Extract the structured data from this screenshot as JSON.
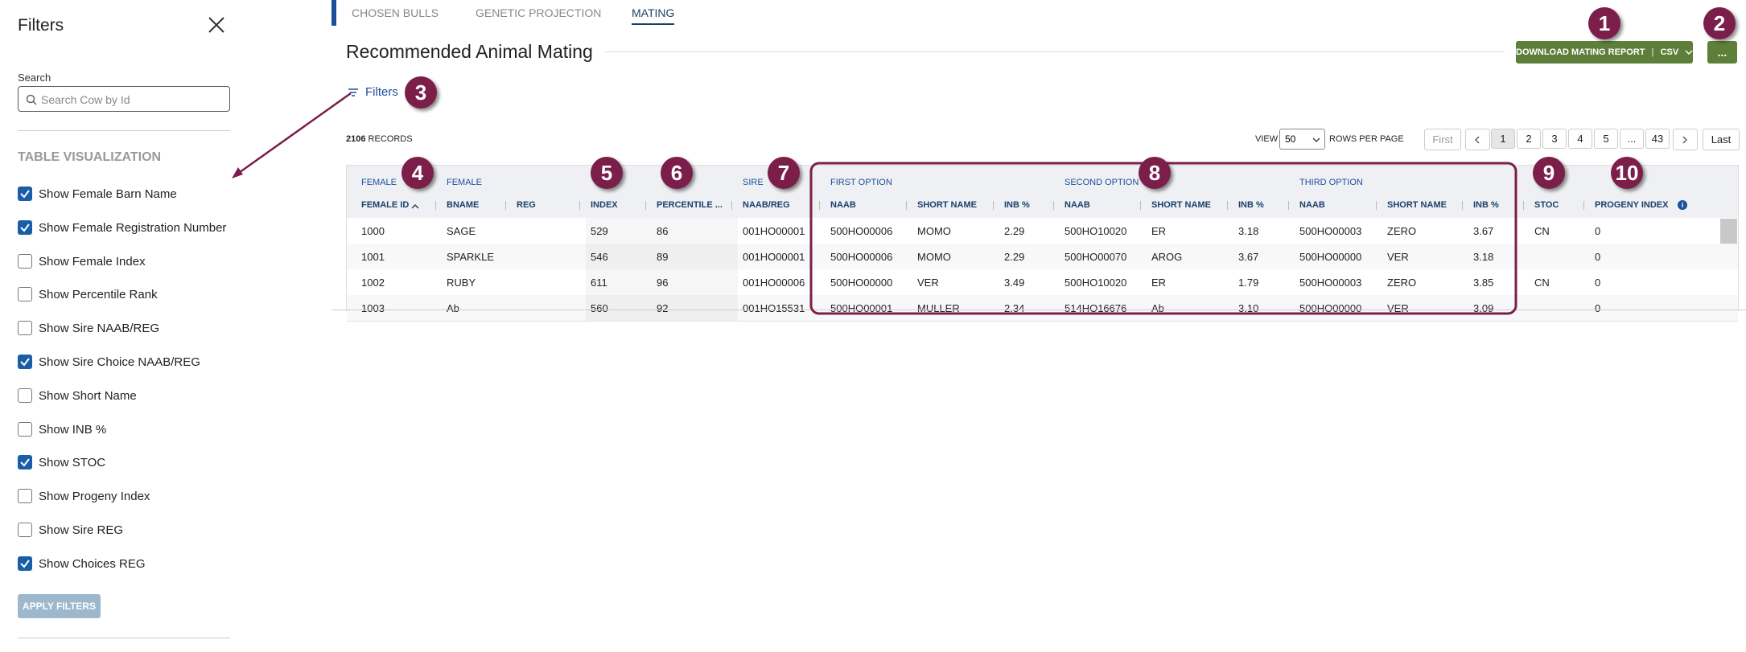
{
  "filters_panel": {
    "title": "Filters",
    "search_label": "Search",
    "search_placeholder": "Search Cow by Id",
    "section_title": "TABLE VISUALIZATION",
    "options": [
      {
        "label": "Show Female Barn Name",
        "checked": true
      },
      {
        "label": "Show Female Registration Number",
        "checked": true
      },
      {
        "label": "Show Female Index",
        "checked": false
      },
      {
        "label": "Show Percentile Rank",
        "checked": false
      },
      {
        "label": "Show Sire NAAB/REG",
        "checked": false
      },
      {
        "label": "Show Sire Choice NAAB/REG",
        "checked": true
      },
      {
        "label": "Show Short Name",
        "checked": false
      },
      {
        "label": "Show INB %",
        "checked": false
      },
      {
        "label": "Show STOC",
        "checked": true
      },
      {
        "label": "Show Progeny Index",
        "checked": false
      },
      {
        "label": "Show Sire REG",
        "checked": false
      },
      {
        "label": "Show Choices REG",
        "checked": true
      }
    ],
    "apply_button": "APPLY FILTERS"
  },
  "tabs": [
    {
      "label": "CHOSEN BULLS",
      "active": false
    },
    {
      "label": "GENETIC PROJECTION",
      "active": false
    },
    {
      "label": "MATING",
      "active": true
    }
  ],
  "page_title": "Recommended Animal Mating",
  "download_button": "DOWNLOAD MATING REPORT",
  "format": "CSV",
  "more_button": "...",
  "filters_link": "Filters",
  "records": {
    "count": "2106",
    "label": "RECORDS"
  },
  "pagination": {
    "view_label": "VIEW",
    "rows_per_page": "50",
    "rows_label": "ROWS PER PAGE",
    "first": "First",
    "pages": [
      {
        "label": "1",
        "current": true
      },
      {
        "label": "2",
        "current": false
      },
      {
        "label": "3",
        "current": false
      },
      {
        "label": "4",
        "current": false
      },
      {
        "label": "5",
        "current": false
      },
      {
        "label": "...",
        "current": false
      },
      {
        "label": "43",
        "current": false
      }
    ],
    "last": "Last"
  },
  "table": {
    "group_headers": [
      "FEMALE",
      "FEMALE",
      "SIRE",
      "FIRST OPTION",
      "SECOND OPTION",
      "THIRD OPTION"
    ],
    "columns": [
      "FEMALE ID",
      "BNAME",
      "REG",
      "INDEX",
      "PERCENTILE ...",
      "NAAB/REG",
      "NAAB",
      "SHORT NAME",
      "INB %",
      "NAAB",
      "SHORT NAME",
      "INB %",
      "NAAB",
      "SHORT NAME",
      "INB %",
      "STOC",
      "PROGENY INDEX"
    ],
    "rows": [
      [
        "1000",
        "SAGE",
        null,
        "529",
        "86",
        "001HO00001",
        "500HO00006",
        "MOMO",
        "2.29",
        "500HO10020",
        "ER",
        "3.18",
        "500HO00003",
        "ZERO",
        "3.67",
        "CN",
        "0"
      ],
      [
        "1001",
        "SPARKLE",
        null,
        "546",
        "89",
        "001HO00001",
        "500HO00006",
        "MOMO",
        "2.29",
        "500HO00070",
        "AROG",
        "3.67",
        "500HO00000",
        "VER",
        "3.18",
        null,
        "0"
      ],
      [
        "1002",
        "RUBY",
        null,
        "611",
        "96",
        "001HO00006",
        "500HO00000",
        "VER",
        "3.49",
        "500HO10020",
        "ER",
        "1.79",
        "500HO00003",
        "ZERO",
        "3.85",
        "CN",
        "0"
      ],
      [
        "1003",
        "Ab",
        null,
        "560",
        "92",
        "001HO15531",
        "500HO00001",
        "MULLER",
        "2.34",
        "514HO16676",
        "Ab",
        "3.10",
        "500HO00000",
        "VER",
        "3.09",
        null,
        "0"
      ]
    ]
  },
  "annotations": [
    "1",
    "2",
    "3",
    "4",
    "5",
    "6",
    "7",
    "8",
    "9",
    "10"
  ]
}
